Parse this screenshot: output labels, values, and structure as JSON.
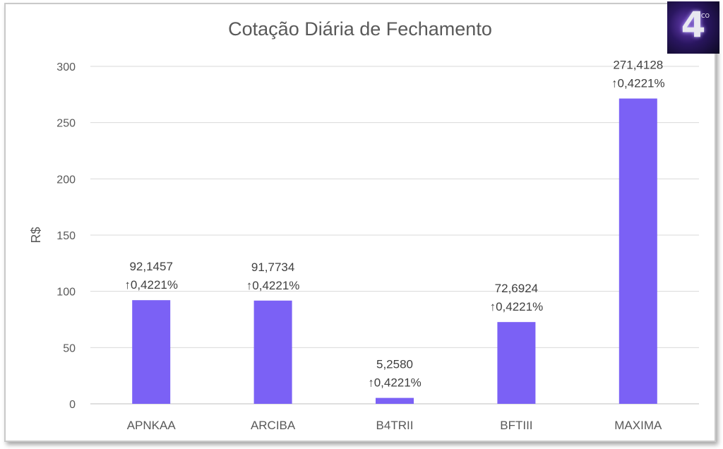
{
  "chart_data": {
    "type": "bar",
    "title": "Cotação Diária de Fechamento",
    "ylabel": "R$",
    "xlabel": "",
    "ylim": [
      0,
      300
    ],
    "yticks": [
      0,
      50,
      100,
      150,
      200,
      250,
      300
    ],
    "grid": true,
    "categories": [
      "APNKAA",
      "ARCIBA",
      "B4TRII",
      "BFTIII",
      "MAXIMA"
    ],
    "values": [
      92.1457,
      91.7734,
      5.258,
      72.6924,
      271.4128
    ],
    "value_labels": [
      "92,1457",
      "91,7734",
      "5,2580",
      "72,6924",
      "271,4128"
    ],
    "change_labels": [
      "↑0,4221%",
      "↑0,4221%",
      "↑0,4221%",
      "↑0,4221%",
      "↑0,4221%"
    ],
    "bar_color": "#7b61f5"
  },
  "logo": {
    "digit": "4",
    "superscript": "CO",
    "icon": "b4-logo-icon"
  }
}
